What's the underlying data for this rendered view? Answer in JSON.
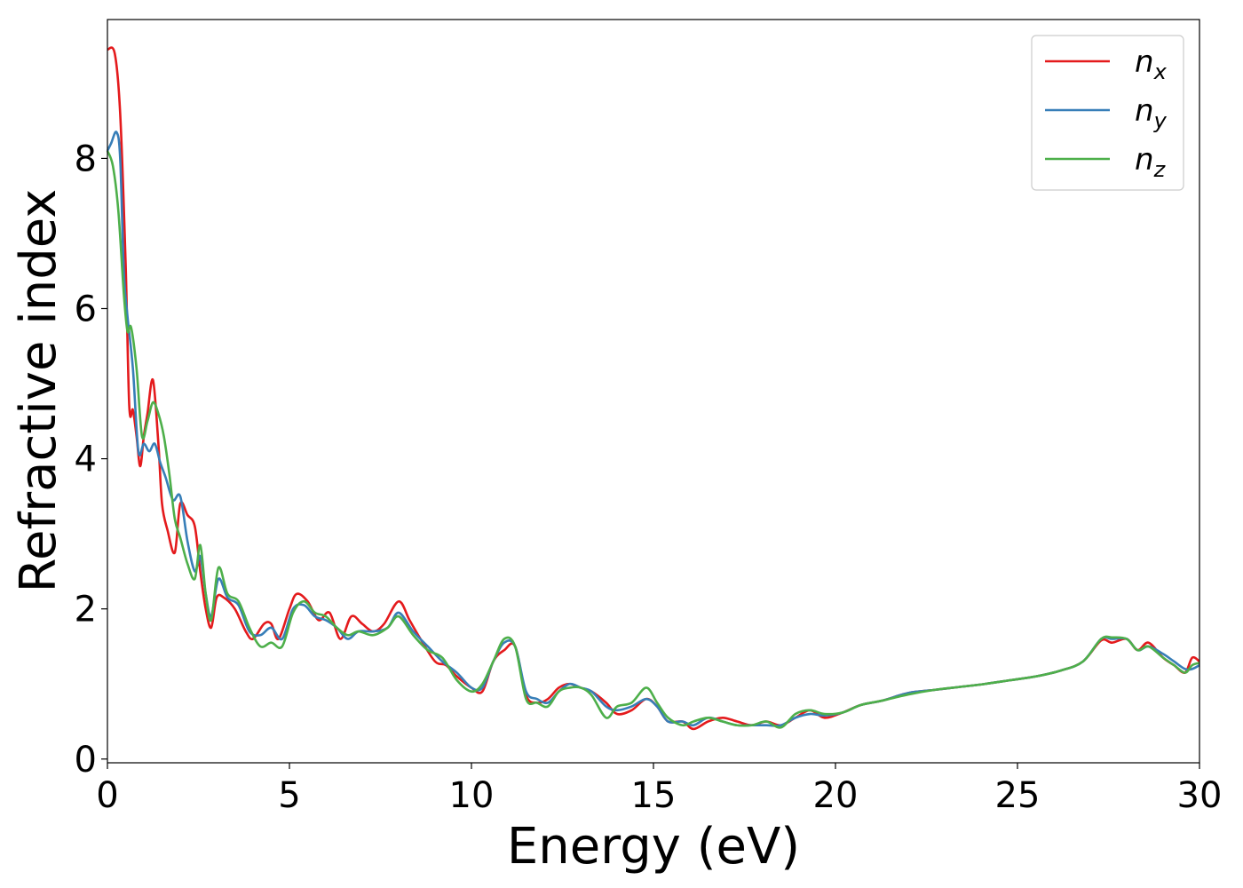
{
  "chart_data": {
    "type": "line",
    "xlabel": "Energy (eV)",
    "ylabel": "Refractive index",
    "xlim": [
      0,
      30
    ],
    "ylim": [
      -0.05,
      9.85
    ],
    "xticks": [
      0,
      5,
      10,
      15,
      20,
      25,
      30
    ],
    "yticks": [
      0,
      2,
      4,
      6,
      8
    ],
    "grid": false,
    "legend_position": "top-right",
    "series": [
      {
        "name": "n_x",
        "label_main": "n",
        "label_sub": "x",
        "color": "#e41a1c",
        "x": [
          0,
          0.2,
          0.35,
          0.5,
          0.6,
          0.7,
          0.8,
          0.9,
          1.0,
          1.1,
          1.25,
          1.4,
          1.5,
          1.65,
          1.85,
          2.0,
          2.2,
          2.4,
          2.55,
          2.7,
          2.85,
          3.0,
          3.2,
          3.5,
          3.8,
          4.0,
          4.3,
          4.5,
          4.7,
          5.0,
          5.2,
          5.5,
          5.8,
          6.1,
          6.4,
          6.7,
          7.0,
          7.3,
          7.6,
          8.0,
          8.3,
          8.6,
          9.0,
          9.3,
          9.6,
          10.0,
          10.3,
          10.6,
          10.9,
          11.2,
          11.5,
          11.8,
          12.1,
          12.4,
          12.7,
          13.0,
          13.3,
          13.7,
          14.0,
          14.4,
          14.8,
          15.1,
          15.4,
          15.8,
          16.1,
          16.5,
          16.9,
          17.3,
          17.7,
          18.1,
          18.5,
          18.9,
          19.3,
          19.7,
          20.2,
          20.7,
          21.3,
          22.0,
          22.7,
          23.4,
          24.1,
          24.8,
          25.5,
          26.2,
          26.8,
          27.3,
          27.6,
          28.0,
          28.3,
          28.6,
          29.0,
          29.3,
          29.6,
          29.8,
          30.0
        ],
        "y": [
          9.45,
          9.4,
          8.6,
          6.6,
          4.7,
          4.65,
          4.3,
          3.9,
          4.3,
          4.6,
          5.05,
          4.2,
          3.4,
          3.05,
          2.75,
          3.4,
          3.25,
          3.1,
          2.5,
          2.0,
          1.75,
          2.15,
          2.15,
          2.0,
          1.7,
          1.6,
          1.8,
          1.8,
          1.6,
          2.0,
          2.2,
          2.1,
          1.85,
          1.95,
          1.6,
          1.9,
          1.8,
          1.7,
          1.8,
          2.1,
          1.85,
          1.6,
          1.3,
          1.25,
          1.1,
          0.95,
          0.9,
          1.3,
          1.45,
          1.5,
          0.85,
          0.75,
          0.8,
          0.95,
          1.0,
          0.95,
          0.9,
          0.75,
          0.6,
          0.65,
          0.8,
          0.7,
          0.5,
          0.5,
          0.4,
          0.5,
          0.55,
          0.5,
          0.45,
          0.5,
          0.45,
          0.55,
          0.65,
          0.55,
          0.62,
          0.72,
          0.78,
          0.88,
          0.92,
          0.96,
          1.0,
          1.05,
          1.1,
          1.18,
          1.3,
          1.58,
          1.55,
          1.6,
          1.45,
          1.55,
          1.35,
          1.25,
          1.15,
          1.35,
          1.3
        ]
      },
      {
        "name": "n_y",
        "label_main": "n",
        "label_sub": "y",
        "color": "#377eb8",
        "x": [
          0,
          0.1,
          0.25,
          0.35,
          0.45,
          0.55,
          0.7,
          0.85,
          1.0,
          1.15,
          1.3,
          1.45,
          1.6,
          1.8,
          2.0,
          2.2,
          2.4,
          2.55,
          2.7,
          2.85,
          3.05,
          3.3,
          3.6,
          3.9,
          4.2,
          4.5,
          4.8,
          5.1,
          5.4,
          5.7,
          6.0,
          6.3,
          6.6,
          6.9,
          7.3,
          7.7,
          8.0,
          8.4,
          8.8,
          9.2,
          9.6,
          10.0,
          10.3,
          10.6,
          10.9,
          11.2,
          11.5,
          11.8,
          12.1,
          12.4,
          12.7,
          13.0,
          13.3,
          13.7,
          14.0,
          14.4,
          14.8,
          15.1,
          15.4,
          15.8,
          16.1,
          16.5,
          16.9,
          17.3,
          17.7,
          18.1,
          18.5,
          18.9,
          19.3,
          19.7,
          20.2,
          20.7,
          21.3,
          22.0,
          22.7,
          23.4,
          24.1,
          24.8,
          25.5,
          26.2,
          26.8,
          27.3,
          27.6,
          28.0,
          28.3,
          28.6,
          29.0,
          29.3,
          29.6,
          29.8,
          30.0
        ],
        "y": [
          8.1,
          8.2,
          8.35,
          8.0,
          6.5,
          5.9,
          5.2,
          4.1,
          4.2,
          4.1,
          4.2,
          3.95,
          3.75,
          3.45,
          3.5,
          2.9,
          2.5,
          2.7,
          2.2,
          1.9,
          2.4,
          2.15,
          2.05,
          1.7,
          1.65,
          1.75,
          1.6,
          2.0,
          2.05,
          1.9,
          1.85,
          1.75,
          1.6,
          1.7,
          1.7,
          1.75,
          1.95,
          1.7,
          1.5,
          1.3,
          1.15,
          0.95,
          0.95,
          1.3,
          1.55,
          1.5,
          0.9,
          0.8,
          0.75,
          0.9,
          1.0,
          0.95,
          0.9,
          0.7,
          0.65,
          0.7,
          0.8,
          0.7,
          0.5,
          0.5,
          0.45,
          0.55,
          0.5,
          0.45,
          0.45,
          0.45,
          0.45,
          0.55,
          0.6,
          0.58,
          0.62,
          0.72,
          0.78,
          0.88,
          0.92,
          0.96,
          1.0,
          1.05,
          1.1,
          1.18,
          1.3,
          1.6,
          1.6,
          1.6,
          1.45,
          1.5,
          1.4,
          1.3,
          1.2,
          1.2,
          1.25
        ]
      },
      {
        "name": "n_z",
        "label_main": "n",
        "label_sub": "z",
        "color": "#4daf4a",
        "x": [
          0,
          0.15,
          0.3,
          0.45,
          0.55,
          0.65,
          0.8,
          0.95,
          1.1,
          1.25,
          1.4,
          1.55,
          1.7,
          1.85,
          2.0,
          2.2,
          2.4,
          2.55,
          2.7,
          2.85,
          3.05,
          3.3,
          3.6,
          3.9,
          4.2,
          4.5,
          4.8,
          5.1,
          5.4,
          5.7,
          6.0,
          6.3,
          6.6,
          6.9,
          7.3,
          7.7,
          8.0,
          8.4,
          8.8,
          9.2,
          9.6,
          10.0,
          10.3,
          10.6,
          10.9,
          11.2,
          11.5,
          11.8,
          12.1,
          12.4,
          12.7,
          13.0,
          13.3,
          13.7,
          14.0,
          14.4,
          14.8,
          15.1,
          15.4,
          15.8,
          16.1,
          16.5,
          16.9,
          17.3,
          17.7,
          18.1,
          18.5,
          18.9,
          19.3,
          19.7,
          20.2,
          20.7,
          21.3,
          22.0,
          22.7,
          23.4,
          24.1,
          24.8,
          25.5,
          26.2,
          26.8,
          27.3,
          27.6,
          28.0,
          28.3,
          28.6,
          29.0,
          29.3,
          29.6,
          29.8,
          30.0
        ],
        "y": [
          8.1,
          7.9,
          7.3,
          6.2,
          5.7,
          5.75,
          5.2,
          4.3,
          4.5,
          4.75,
          4.6,
          4.3,
          3.8,
          3.2,
          2.95,
          2.6,
          2.4,
          2.85,
          2.2,
          1.85,
          2.55,
          2.2,
          2.1,
          1.75,
          1.5,
          1.55,
          1.5,
          1.95,
          2.1,
          1.95,
          1.9,
          1.75,
          1.65,
          1.7,
          1.65,
          1.75,
          1.9,
          1.65,
          1.45,
          1.35,
          1.05,
          0.9,
          1.0,
          1.3,
          1.6,
          1.5,
          0.8,
          0.75,
          0.7,
          0.9,
          0.95,
          0.95,
          0.85,
          0.55,
          0.7,
          0.75,
          0.95,
          0.75,
          0.55,
          0.45,
          0.5,
          0.55,
          0.5,
          0.45,
          0.45,
          0.5,
          0.42,
          0.6,
          0.65,
          0.6,
          0.62,
          0.72,
          0.78,
          0.86,
          0.92,
          0.96,
          1.0,
          1.05,
          1.1,
          1.18,
          1.3,
          1.6,
          1.62,
          1.6,
          1.45,
          1.5,
          1.35,
          1.25,
          1.15,
          1.25,
          1.28
        ]
      }
    ]
  }
}
